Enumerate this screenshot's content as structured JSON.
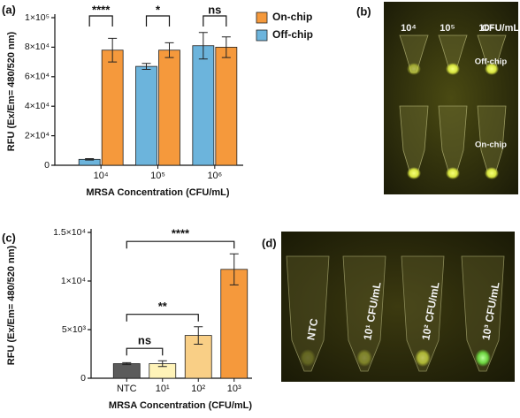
{
  "panel_labels": [
    "(a)",
    "(b)",
    "(c)",
    "(d)"
  ],
  "chart_data": [
    {
      "type": "bar",
      "ylabel": "RFU (Ex/Em= 480/520 nm)",
      "xlabel": "MRSA Concentration (CFU/mL)",
      "categories": [
        "10⁴",
        "10⁵",
        "10⁶"
      ],
      "series": [
        {
          "name": "Off-chip",
          "color": "#6cb4dc",
          "values": [
            4000,
            67000,
            81000
          ],
          "errors": [
            500,
            2000,
            9000
          ]
        },
        {
          "name": "On-chip",
          "color": "#f5993c",
          "values": [
            78000,
            78000,
            80000
          ],
          "errors": [
            8000,
            5000,
            7000
          ]
        }
      ],
      "ylim": [
        0,
        100000
      ],
      "yticks": [
        0,
        {
          "value": 20000,
          "label": "2×10⁴"
        },
        {
          "value": 40000,
          "label": "4×10⁴"
        },
        {
          "value": 60000,
          "label": "6×10⁴"
        },
        {
          "value": 80000,
          "label": "8×10⁴"
        },
        {
          "value": 100000,
          "label": "1×10⁵"
        }
      ],
      "annotations": [
        "****",
        "*",
        "ns"
      ],
      "legend": "right"
    },
    {
      "type": "bar",
      "ylabel": "RFU (Ex/Em= 480/520 nm)",
      "xlabel": "MRSA Concentration (CFU/mL)",
      "categories": [
        "NTC",
        "10¹",
        "10²",
        "10³"
      ],
      "values": [
        1500,
        1500,
        4400,
        11200
      ],
      "errors": [
        100,
        300,
        900,
        1600
      ],
      "colors": [
        "#5b5b5b",
        "#fff3b8",
        "#f9cf86",
        "#f5993c"
      ],
      "ylim": [
        0,
        15000
      ],
      "yticks": [
        0,
        {
          "value": 5000,
          "label": "5×10³"
        },
        {
          "value": 10000,
          "label": "1×10⁴"
        },
        {
          "value": 15000,
          "label": "1.5×10⁴"
        }
      ],
      "annotations": [
        "ns",
        "**",
        "****"
      ]
    }
  ],
  "photo_b": {
    "concentrations": [
      "10⁴",
      "10⁵",
      "10⁶"
    ],
    "unit": "CFU/mL",
    "rows": [
      "Off-chip",
      "On-chip"
    ]
  },
  "photo_d": {
    "labels": [
      "NTC",
      "10¹ CFU/mL",
      "10² CFU/mL",
      "10³ CFU/mL"
    ]
  }
}
